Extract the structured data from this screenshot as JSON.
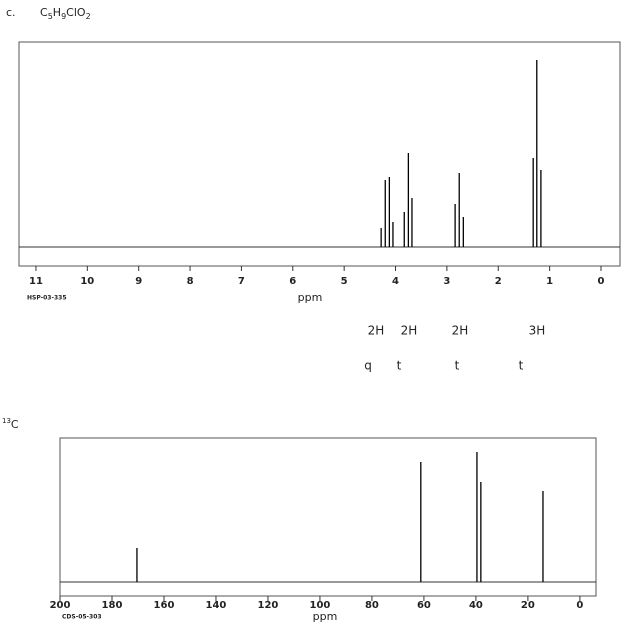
{
  "chart_data": [
    {
      "type": "spectrum",
      "label": "c.",
      "formula": [
        "C",
        "5",
        "H",
        "9",
        "ClO",
        "2"
      ],
      "code": "HSP-03-335",
      "xlabel": "ppm",
      "xlim": [
        11.33,
        -0.37
      ],
      "xticks": [
        11,
        10,
        9,
        8,
        7,
        6,
        5,
        4,
        3,
        2,
        1,
        0
      ],
      "ylim": [
        -19,
        205
      ],
      "peaks": {
        "x": [
          4.28,
          4.2,
          4.12,
          4.05,
          3.83,
          3.75,
          3.68,
          2.84,
          2.76,
          2.68,
          1.32,
          1.25,
          1.17
        ],
        "values": [
          19,
          67,
          70,
          25,
          35,
          94,
          49,
          43,
          74,
          30,
          89,
          187,
          77
        ]
      },
      "color": "#000000",
      "annotations": [
        {
          "integration": "2H",
          "multiplicity": "q"
        },
        {
          "integration": "2H",
          "multiplicity": "t"
        },
        {
          "integration": "2H",
          "multiplicity": "t"
        },
        {
          "integration": "3H",
          "multiplicity": "t"
        }
      ]
    },
    {
      "type": "spectrum",
      "title": [
        "13",
        "C"
      ],
      "code": "CDS-05-303",
      "xlabel": "ppm",
      "xlim": [
        200,
        -6.2
      ],
      "xticks": [
        200,
        180,
        160,
        140,
        120,
        100,
        80,
        60,
        40,
        20,
        0
      ],
      "ylim": [
        -14,
        144
      ],
      "peaks": {
        "x": [
          170.4,
          61.2,
          39.6,
          38.1,
          14.2
        ],
        "values": [
          34,
          120,
          130,
          100,
          91
        ]
      },
      "color": "#000000"
    }
  ]
}
